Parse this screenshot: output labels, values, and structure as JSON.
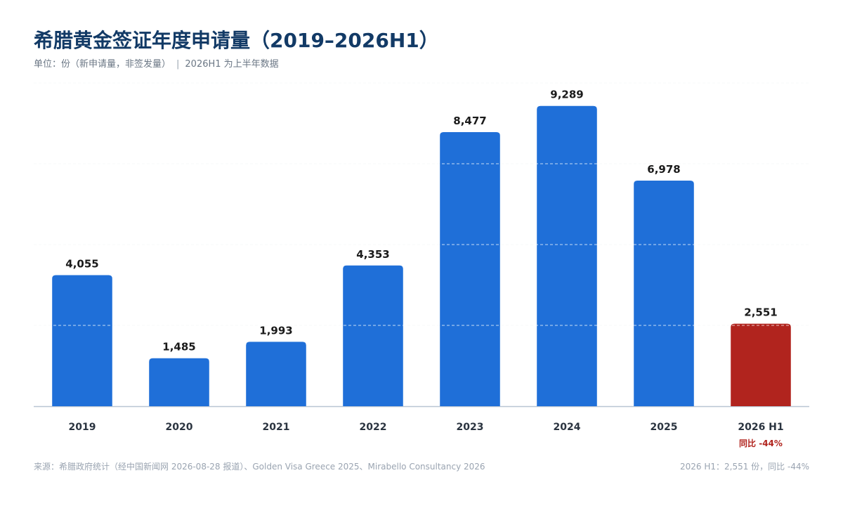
{
  "header": {
    "title": "希腊黄金签证年度申请量（2019–2026H1）",
    "subtitle_unit": "单位：份（新申请量，非签发量）",
    "subtitle_sep": "|",
    "subtitle_note": "2026H1 为上半年数据"
  },
  "footer": {
    "source": "来源：希腊政府统计（经中国新闻网 2026-08-28 报道）、Golden Visa Greece 2025、Mirabello Consultancy 2026",
    "summary": "2026 H1：2,551 份，同比 -44%"
  },
  "colors": {
    "bar": "#1f6fd8",
    "highlight": "#b1241e",
    "grid": "#dfe5ec",
    "axis": "#b9c6d3",
    "value_label": "#1a1a1a",
    "tick_label": "#2b3440"
  },
  "chart_data": {
    "type": "bar",
    "categories": [
      "2019",
      "2020",
      "2021",
      "2022",
      "2023",
      "2024",
      "2025",
      "2026 H1"
    ],
    "values": [
      4055,
      1485,
      1993,
      4353,
      8477,
      9289,
      6978,
      2551
    ],
    "value_labels": [
      "4,055",
      "1,485",
      "1,993",
      "4,353",
      "8,477",
      "9,289",
      "6,978",
      "2,551"
    ],
    "highlight_index": 7,
    "highlight_annotation": "同比 -44%",
    "ylim": [
      0,
      10000
    ],
    "grid": true,
    "legend": "none"
  }
}
